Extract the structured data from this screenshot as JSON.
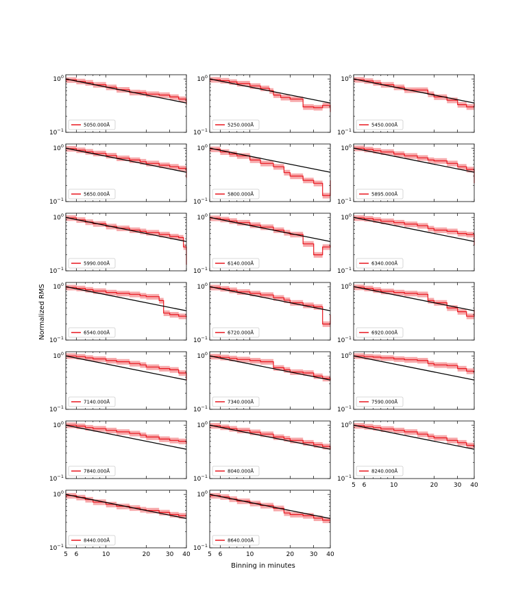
{
  "figure": {
    "xlabel": "Binning in minutes",
    "ylabel": "Normalized RMS"
  },
  "colors": {
    "series": "#e8141c",
    "band": "#f48c8f",
    "model": "#000000"
  },
  "chart_data": {
    "type": "line",
    "grid": {
      "rows": 7,
      "cols": 3
    },
    "xscale": "log",
    "yscale": "log",
    "xlim": [
      5,
      40
    ],
    "ylim": [
      0.1,
      1.2
    ],
    "xticks": [
      5,
      6,
      10,
      20,
      30,
      40
    ],
    "yticks": [
      {
        "value": 1,
        "label": "10^0"
      },
      {
        "value": 0.1,
        "label": "10^-1"
      }
    ],
    "model_line": {
      "x": [
        5,
        40
      ],
      "y": [
        1.0,
        0.354
      ]
    },
    "legend_loc": "lower left",
    "panels": [
      {
        "label": "5050.000Å",
        "series": {
          "x": [
            5,
            6,
            7,
            8,
            10,
            12,
            15,
            18,
            20,
            25,
            30,
            35,
            40
          ],
          "y": [
            0.96,
            0.9,
            0.85,
            0.78,
            0.7,
            0.63,
            0.56,
            0.55,
            0.52,
            0.5,
            0.46,
            0.42,
            0.33
          ]
        }
      },
      {
        "label": "5250.000Å",
        "series": {
          "x": [
            5,
            6,
            7,
            8,
            10,
            12,
            14,
            15,
            17,
            20,
            25,
            30,
            35,
            40
          ],
          "y": [
            0.97,
            0.93,
            0.88,
            0.82,
            0.74,
            0.67,
            0.6,
            0.5,
            0.45,
            0.42,
            0.3,
            0.29,
            0.32,
            0.24
          ]
        }
      },
      {
        "label": "5450.000Å",
        "series": {
          "x": [
            5,
            6,
            7,
            8,
            10,
            12,
            15,
            18,
            20,
            25,
            30,
            35,
            40
          ],
          "y": [
            0.97,
            0.92,
            0.85,
            0.78,
            0.7,
            0.62,
            0.62,
            0.52,
            0.46,
            0.4,
            0.33,
            0.3,
            0.35
          ]
        }
      },
      {
        "label": "5650.000Å",
        "series": {
          "x": [
            5,
            6,
            7,
            8,
            10,
            12,
            15,
            18,
            20,
            25,
            30,
            35,
            40
          ],
          "y": [
            0.98,
            0.92,
            0.86,
            0.8,
            0.73,
            0.65,
            0.6,
            0.56,
            0.52,
            0.48,
            0.45,
            0.42,
            0.28
          ]
        }
      },
      {
        "label": "5800.000Å",
        "series": {
          "x": [
            5,
            6,
            7,
            8,
            10,
            12,
            15,
            18,
            20,
            25,
            30,
            35,
            40
          ],
          "y": [
            0.96,
            0.85,
            0.78,
            0.72,
            0.6,
            0.52,
            0.45,
            0.35,
            0.3,
            0.25,
            0.22,
            0.13,
            0.25
          ]
        }
      },
      {
        "label": "5895.000Å",
        "series": {
          "x": [
            5,
            6,
            7,
            8,
            10,
            12,
            15,
            18,
            20,
            25,
            30,
            35,
            40
          ],
          "y": [
            1.0,
            0.95,
            0.9,
            0.85,
            0.78,
            0.72,
            0.66,
            0.6,
            0.58,
            0.52,
            0.45,
            0.4,
            0.22
          ]
        }
      },
      {
        "label": "5990.000Å",
        "series": {
          "x": [
            5,
            6,
            7,
            8,
            10,
            12,
            15,
            18,
            20,
            25,
            30,
            35,
            38,
            40
          ],
          "y": [
            0.98,
            0.9,
            0.82,
            0.76,
            0.68,
            0.63,
            0.58,
            0.55,
            0.52,
            0.48,
            0.44,
            0.42,
            0.28,
            0.13
          ]
        }
      },
      {
        "label": "6140.000Å",
        "series": {
          "x": [
            5,
            6,
            7,
            8,
            10,
            12,
            15,
            18,
            20,
            25,
            30,
            35,
            40
          ],
          "y": [
            0.97,
            0.92,
            0.86,
            0.8,
            0.72,
            0.66,
            0.58,
            0.52,
            0.48,
            0.32,
            0.2,
            0.28,
            0.3
          ]
        }
      },
      {
        "label": "6340.000Å",
        "series": {
          "x": [
            5,
            6,
            7,
            8,
            10,
            12,
            15,
            18,
            20,
            25,
            30,
            35,
            40
          ],
          "y": [
            0.98,
            0.95,
            0.9,
            0.85,
            0.8,
            0.75,
            0.7,
            0.62,
            0.58,
            0.55,
            0.5,
            0.48,
            0.3
          ]
        }
      },
      {
        "label": "6540.000Å",
        "series": {
          "x": [
            5,
            6,
            7,
            8,
            10,
            12,
            15,
            18,
            20,
            25,
            27,
            30,
            35,
            40
          ],
          "y": [
            0.97,
            0.93,
            0.88,
            0.83,
            0.78,
            0.75,
            0.72,
            0.68,
            0.65,
            0.55,
            0.32,
            0.3,
            0.28,
            0.27
          ]
        }
      },
      {
        "label": "6720.000Å",
        "series": {
          "x": [
            5,
            6,
            7,
            8,
            10,
            12,
            15,
            18,
            20,
            25,
            30,
            35,
            40
          ],
          "y": [
            0.97,
            0.92,
            0.86,
            0.8,
            0.75,
            0.7,
            0.62,
            0.56,
            0.5,
            0.45,
            0.42,
            0.2,
            0.3
          ]
        }
      },
      {
        "label": "6920.000Å",
        "series": {
          "x": [
            5,
            6,
            7,
            8,
            10,
            12,
            15,
            18,
            20,
            25,
            30,
            35,
            40
          ],
          "y": [
            0.98,
            0.93,
            0.87,
            0.82,
            0.78,
            0.75,
            0.72,
            0.55,
            0.5,
            0.4,
            0.34,
            0.28,
            0.37
          ]
        }
      },
      {
        "label": "7140.000Å",
        "series": {
          "x": [
            5,
            6,
            7,
            8,
            10,
            12,
            15,
            18,
            20,
            25,
            30,
            35,
            40
          ],
          "y": [
            1.0,
            0.97,
            0.92,
            0.88,
            0.82,
            0.78,
            0.72,
            0.68,
            0.62,
            0.58,
            0.55,
            0.48,
            0.35
          ]
        }
      },
      {
        "label": "7340.000Å",
        "series": {
          "x": [
            5,
            6,
            7,
            8,
            10,
            12,
            15,
            18,
            20,
            25,
            30,
            35,
            40
          ],
          "y": [
            0.98,
            0.94,
            0.9,
            0.86,
            0.82,
            0.78,
            0.6,
            0.55,
            0.5,
            0.48,
            0.42,
            0.38,
            0.35
          ]
        }
      },
      {
        "label": "7590.000Å",
        "series": {
          "x": [
            5,
            6,
            7,
            8,
            10,
            12,
            15,
            18,
            20,
            25,
            30,
            35,
            40
          ],
          "y": [
            1.0,
            0.97,
            0.95,
            0.92,
            0.88,
            0.85,
            0.82,
            0.72,
            0.68,
            0.66,
            0.58,
            0.52,
            0.5
          ]
        }
      },
      {
        "label": "7840.000Å",
        "series": {
          "x": [
            5,
            6,
            7,
            8,
            10,
            12,
            15,
            18,
            20,
            25,
            30,
            35,
            40
          ],
          "y": [
            1.0,
            0.96,
            0.9,
            0.86,
            0.8,
            0.75,
            0.7,
            0.65,
            0.6,
            0.55,
            0.52,
            0.5,
            0.45
          ]
        }
      },
      {
        "label": "8040.000Å",
        "series": {
          "x": [
            5,
            6,
            7,
            8,
            10,
            12,
            15,
            18,
            20,
            25,
            30,
            35,
            40
          ],
          "y": [
            0.98,
            0.92,
            0.86,
            0.8,
            0.74,
            0.68,
            0.6,
            0.56,
            0.52,
            0.47,
            0.43,
            0.4,
            0.35
          ]
        }
      },
      {
        "label": "8240.000Å",
        "series": {
          "x": [
            5,
            6,
            7,
            8,
            10,
            12,
            15,
            18,
            20,
            25,
            30,
            35,
            40
          ],
          "y": [
            0.98,
            0.94,
            0.9,
            0.85,
            0.8,
            0.75,
            0.68,
            0.62,
            0.58,
            0.52,
            0.47,
            0.42,
            0.38
          ]
        }
      },
      {
        "label": "8440.000Å",
        "series": {
          "x": [
            5,
            6,
            7,
            8,
            10,
            12,
            15,
            18,
            20,
            25,
            30,
            35,
            40
          ],
          "y": [
            0.95,
            0.88,
            0.8,
            0.72,
            0.65,
            0.6,
            0.56,
            0.52,
            0.5,
            0.46,
            0.42,
            0.4,
            0.4
          ]
        }
      },
      {
        "label": "8640.000Å",
        "series": {
          "x": [
            5,
            6,
            7,
            8,
            10,
            12,
            15,
            18,
            20,
            25,
            30,
            35,
            40
          ],
          "y": [
            0.95,
            0.9,
            0.82,
            0.75,
            0.68,
            0.62,
            0.55,
            0.45,
            0.42,
            0.4,
            0.36,
            0.33,
            0.33
          ]
        }
      }
    ]
  }
}
